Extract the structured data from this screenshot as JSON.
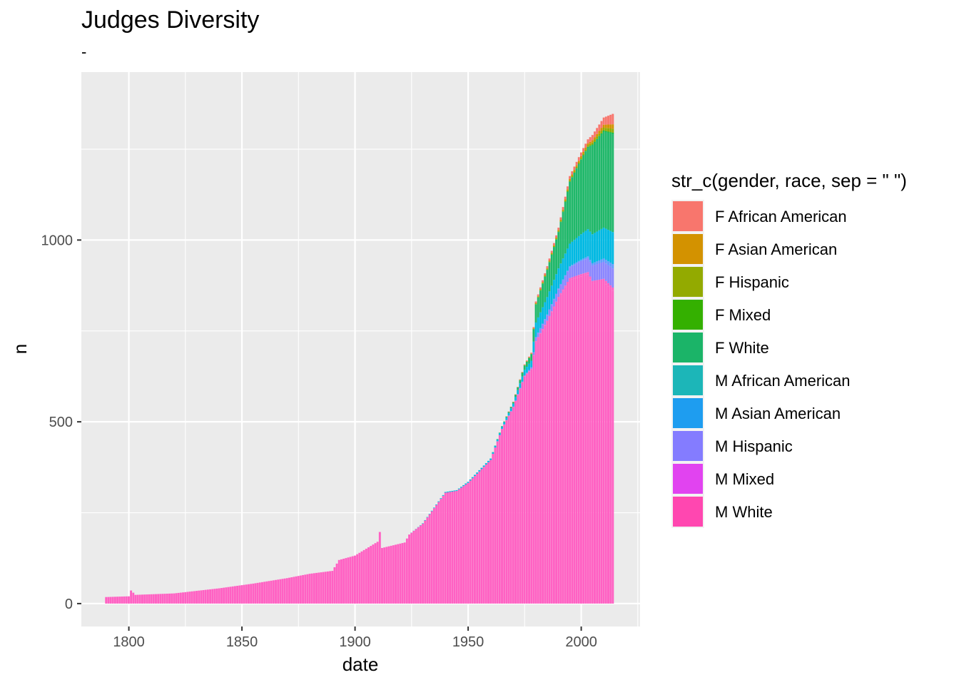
{
  "chart_data": {
    "type": "bar",
    "stacked": true,
    "title": "Judges Diversity",
    "subtitle": "-",
    "xlabel": "date",
    "ylabel": "n",
    "xlim": [
      1779,
      2026
    ],
    "ylim": [
      -63,
      1462
    ],
    "x_ticks": [
      1800,
      1850,
      1900,
      1950,
      2000
    ],
    "y_ticks": [
      0,
      500,
      1000
    ],
    "grid": true,
    "legend_title": "str_c(gender, race, sep = \" \")",
    "legend_position": "right",
    "series": [
      {
        "name": "F African American",
        "color": "#F8766D"
      },
      {
        "name": "F Asian American",
        "color": "#D39200"
      },
      {
        "name": "F Hispanic",
        "color": "#93AA00"
      },
      {
        "name": "F Mixed",
        "color": "#00BA38"
      },
      {
        "name": "F White",
        "color": "#00C19F"
      },
      {
        "name": "M African American",
        "color": "#00B9E3"
      },
      {
        "name": "M Asian American",
        "color": "#619CFF"
      },
      {
        "name": "M Hispanic",
        "color": "#DB72FB"
      },
      {
        "name": "M Mixed",
        "color": "#FF61C3"
      },
      {
        "name": "M White",
        "color": "#FF61C3"
      }
    ],
    "anchors": [
      {
        "x": 1790,
        "mw": 18,
        "mh": 0,
        "ma": 0,
        "maa": 0,
        "fw": 0,
        "fx": 0
      },
      {
        "x": 1800,
        "mw": 20,
        "mh": 0,
        "ma": 0,
        "maa": 0,
        "fw": 0,
        "fx": 0
      },
      {
        "x": 1801,
        "mw": 36,
        "mh": 0,
        "ma": 0,
        "maa": 0,
        "fw": 0,
        "fx": 0
      },
      {
        "x": 1803,
        "mw": 24,
        "mh": 0,
        "ma": 0,
        "maa": 0,
        "fw": 0,
        "fx": 0
      },
      {
        "x": 1820,
        "mw": 28,
        "mh": 0,
        "ma": 0,
        "maa": 0,
        "fw": 0,
        "fx": 0
      },
      {
        "x": 1840,
        "mw": 42,
        "mh": 0,
        "ma": 0,
        "maa": 0,
        "fw": 0,
        "fx": 0
      },
      {
        "x": 1855,
        "mw": 55,
        "mh": 0,
        "ma": 0,
        "maa": 0,
        "fw": 0,
        "fx": 0
      },
      {
        "x": 1870,
        "mw": 70,
        "mh": 0,
        "ma": 0,
        "maa": 0,
        "fw": 0,
        "fx": 0
      },
      {
        "x": 1880,
        "mw": 82,
        "mh": 0,
        "ma": 0,
        "maa": 0,
        "fw": 0,
        "fx": 0
      },
      {
        "x": 1890,
        "mw": 90,
        "mh": 0,
        "ma": 0,
        "maa": 0,
        "fw": 0,
        "fx": 0
      },
      {
        "x": 1893,
        "mw": 120,
        "mh": 0,
        "ma": 0,
        "maa": 0,
        "fw": 0,
        "fx": 0
      },
      {
        "x": 1900,
        "mw": 132,
        "mh": 0,
        "ma": 0,
        "maa": 0,
        "fw": 0,
        "fx": 0
      },
      {
        "x": 1910,
        "mw": 170,
        "mh": 0,
        "ma": 0,
        "maa": 0,
        "fw": 0,
        "fx": 0
      },
      {
        "x": 1911,
        "mw": 197,
        "mh": 0,
        "ma": 0,
        "maa": 0,
        "fw": 0,
        "fx": 0
      },
      {
        "x": 1912,
        "mw": 153,
        "mh": 0,
        "ma": 0,
        "maa": 0,
        "fw": 0,
        "fx": 0
      },
      {
        "x": 1922,
        "mw": 168,
        "mh": 0,
        "ma": 0,
        "maa": 0,
        "fw": 0,
        "fx": 0
      },
      {
        "x": 1924,
        "mw": 190,
        "mh": 0,
        "ma": 0,
        "maa": 0,
        "fw": 0,
        "fx": 0
      },
      {
        "x": 1930,
        "mw": 220,
        "mh": 0,
        "ma": 0,
        "maa": 1,
        "fw": 0,
        "fx": 0
      },
      {
        "x": 1940,
        "mw": 305,
        "mh": 0,
        "ma": 0,
        "maa": 2,
        "fw": 0,
        "fx": 0
      },
      {
        "x": 1945,
        "mw": 310,
        "mh": 0,
        "ma": 0,
        "maa": 2,
        "fw": 0,
        "fx": 0
      },
      {
        "x": 1950,
        "mw": 332,
        "mh": 0,
        "ma": 0,
        "maa": 3,
        "fw": 0,
        "fx": 0
      },
      {
        "x": 1960,
        "mw": 395,
        "mh": 0,
        "ma": 0,
        "maa": 4,
        "fw": 0,
        "fx": 0
      },
      {
        "x": 1965,
        "mw": 480,
        "mh": 1,
        "ma": 0,
        "maa": 5,
        "fw": 2,
        "fx": 0
      },
      {
        "x": 1970,
        "mw": 540,
        "mh": 2,
        "ma": 0,
        "maa": 8,
        "fw": 4,
        "fx": 1
      },
      {
        "x": 1975,
        "mw": 625,
        "mh": 3,
        "ma": 0,
        "maa": 15,
        "fw": 12,
        "fx": 3
      },
      {
        "x": 1978,
        "mw": 645,
        "mh": 5,
        "ma": 0,
        "maa": 18,
        "fw": 18,
        "fx": 4
      },
      {
        "x": 1980,
        "mw": 720,
        "mh": 12,
        "ma": 1,
        "maa": 40,
        "fw": 50,
        "fx": 8
      },
      {
        "x": 1985,
        "mw": 775,
        "mh": 18,
        "ma": 2,
        "maa": 48,
        "fw": 75,
        "fx": 10
      },
      {
        "x": 1990,
        "mw": 840,
        "mh": 25,
        "ma": 2,
        "maa": 55,
        "fw": 100,
        "fx": 12
      },
      {
        "x": 1995,
        "mw": 890,
        "mh": 35,
        "ma": 3,
        "maa": 62,
        "fw": 170,
        "fx": 16
      },
      {
        "x": 2000,
        "mw": 900,
        "mh": 42,
        "ma": 4,
        "maa": 70,
        "fw": 205,
        "fx": 20
      },
      {
        "x": 2003,
        "mw": 905,
        "mh": 45,
        "ma": 5,
        "maa": 75,
        "fw": 225,
        "fx": 22
      },
      {
        "x": 2005,
        "mw": 880,
        "mh": 50,
        "ma": 6,
        "maa": 80,
        "fw": 245,
        "fx": 28
      },
      {
        "x": 2010,
        "mw": 885,
        "mh": 55,
        "ma": 9,
        "maa": 85,
        "fw": 265,
        "fx": 38
      },
      {
        "x": 2014,
        "mw": 860,
        "mh": 62,
        "ma": 12,
        "maa": 88,
        "fw": 270,
        "fx": 55
      }
    ]
  }
}
